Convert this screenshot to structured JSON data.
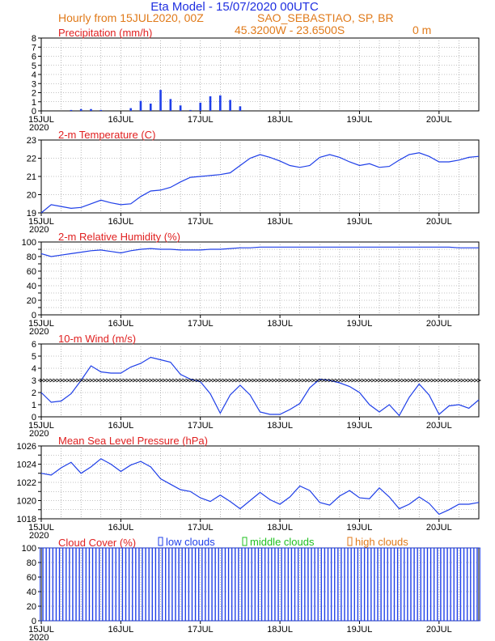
{
  "header": {
    "title": "Eta Model - 15/07/2020 00UTC",
    "line2_left": "Hourly from 15JUL2020, 00Z",
    "location": "SAO_SEBASTIAO, SP, BR",
    "coords": "45.3200W - 23.6500S",
    "elevation": "0  m",
    "title_color": "#1f2fe0",
    "subtitle_color": "#e07a1a",
    "label_color": "#e02020",
    "series_color": "#1f3fe8"
  },
  "x_axis": {
    "tick_labels": [
      "15JUL",
      "16JUL",
      "17JUL",
      "18JUL",
      "19JUL",
      "20JUL"
    ],
    "year_label": "2020",
    "ticks_days": [
      0,
      1,
      2,
      3,
      4,
      5
    ],
    "xlim_hours": [
      0,
      132
    ]
  },
  "chart_data": [
    {
      "type": "bar",
      "title": "Precipitation (mm/h)",
      "ylim": [
        0,
        8
      ],
      "yticks": [
        0,
        1,
        2,
        3,
        4,
        5,
        6,
        7,
        8
      ],
      "x_hours": [
        3,
        6,
        9,
        12,
        15,
        18,
        21,
        24,
        27,
        30,
        33,
        36,
        39,
        42,
        45,
        48,
        51,
        54,
        57,
        60,
        63,
        66,
        69,
        72,
        75,
        78,
        81,
        84,
        87,
        90,
        93,
        96,
        99,
        102,
        105,
        108,
        111,
        114,
        117,
        120,
        123,
        126,
        129,
        132
      ],
      "values": [
        0,
        0,
        0.1,
        0.2,
        0.2,
        0.1,
        0,
        0,
        0.3,
        1.1,
        0.8,
        2.3,
        1.3,
        0.6,
        0.1,
        0.9,
        1.6,
        1.7,
        1.2,
        0.5,
        0,
        0,
        0,
        0,
        0,
        0,
        0,
        0,
        0,
        0,
        0,
        0,
        0,
        0,
        0,
        0,
        0,
        0,
        0,
        0,
        0,
        0,
        0,
        0
      ]
    },
    {
      "type": "line",
      "title": "2-m Temperature (C)",
      "ylim": [
        19,
        23
      ],
      "yticks": [
        19,
        20,
        21,
        22,
        23
      ],
      "x_hours": [
        0,
        3,
        6,
        9,
        12,
        15,
        18,
        21,
        24,
        27,
        30,
        33,
        36,
        39,
        42,
        45,
        48,
        51,
        54,
        57,
        60,
        63,
        66,
        69,
        72,
        75,
        78,
        81,
        84,
        87,
        90,
        93,
        96,
        99,
        102,
        105,
        108,
        111,
        114,
        117,
        120,
        123,
        126,
        129,
        132
      ],
      "values": [
        19.0,
        19.45,
        19.35,
        19.25,
        19.3,
        19.5,
        19.7,
        19.55,
        19.45,
        19.5,
        19.9,
        20.2,
        20.25,
        20.4,
        20.7,
        20.95,
        21.0,
        21.05,
        21.1,
        21.2,
        21.6,
        22.0,
        22.2,
        22.05,
        21.85,
        21.6,
        21.5,
        21.6,
        22.05,
        22.2,
        22.05,
        21.8,
        21.6,
        21.7,
        21.5,
        21.55,
        21.9,
        22.2,
        22.3,
        22.1,
        21.8,
        21.8,
        21.9,
        22.05,
        22.1
      ]
    },
    {
      "type": "line",
      "title": "2-m Relative Humidity (%)",
      "ylim": [
        0,
        100
      ],
      "yticks": [
        0,
        10,
        20,
        30,
        40,
        50,
        60,
        70,
        80,
        90,
        100
      ],
      "ytick_labels": [
        "0",
        "",
        "20",
        "",
        "40",
        "",
        "60",
        "",
        "80",
        "",
        "100"
      ],
      "x_hours": [
        0,
        3,
        6,
        9,
        12,
        15,
        18,
        21,
        24,
        27,
        30,
        33,
        36,
        39,
        42,
        45,
        48,
        51,
        54,
        57,
        60,
        63,
        66,
        69,
        72,
        75,
        78,
        81,
        84,
        87,
        90,
        93,
        96,
        99,
        102,
        105,
        108,
        111,
        114,
        117,
        120,
        123,
        126,
        129,
        132
      ],
      "values": [
        84,
        80,
        82,
        84,
        86,
        88,
        89,
        87,
        85,
        88,
        90,
        91,
        90,
        90,
        89,
        89,
        89,
        90,
        90,
        91,
        92,
        92,
        93,
        93,
        93,
        93,
        93,
        93,
        93,
        93,
        93,
        93,
        93,
        93,
        93,
        93,
        93,
        93,
        93,
        93,
        93,
        93,
        92,
        92,
        92
      ]
    },
    {
      "type": "line",
      "title": "10-m Wind (m/s)",
      "ylim": [
        0,
        6
      ],
      "yticks": [
        0,
        1,
        2,
        3,
        4,
        5,
        6
      ],
      "x_hours": [
        0,
        3,
        6,
        9,
        12,
        15,
        18,
        21,
        24,
        27,
        30,
        33,
        36,
        39,
        42,
        45,
        48,
        51,
        54,
        57,
        60,
        63,
        66,
        69,
        72,
        75,
        78,
        81,
        84,
        87,
        90,
        93,
        96,
        99,
        102,
        105,
        108,
        111,
        114,
        117,
        120,
        123,
        126,
        129,
        132
      ],
      "values": [
        2.0,
        1.2,
        1.3,
        1.9,
        3.0,
        4.2,
        3.7,
        3.6,
        3.6,
        4.1,
        4.4,
        4.9,
        4.7,
        4.5,
        3.5,
        3.1,
        2.9,
        1.9,
        0.3,
        1.8,
        2.6,
        1.8,
        0.4,
        0.2,
        0.2,
        0.6,
        1.1,
        2.4,
        3.1,
        3.0,
        2.8,
        2.5,
        2.0,
        1.0,
        0.4,
        1.0,
        0.1,
        1.6,
        2.7,
        1.8,
        0.2,
        0.9,
        1.0,
        0.7,
        1.4
      ]
    },
    {
      "type": "line",
      "title": "Mean Sea Level Pressure (hPa)",
      "ylim": [
        1018,
        1026
      ],
      "yticks": [
        1018,
        1019,
        1020,
        1021,
        1022,
        1023,
        1024,
        1025,
        1026
      ],
      "ytick_labels": [
        "1018",
        "",
        "1020",
        "",
        "1022",
        "",
        "1024",
        "",
        "1026"
      ],
      "x_hours": [
        0,
        3,
        6,
        9,
        12,
        15,
        18,
        21,
        24,
        27,
        30,
        33,
        36,
        39,
        42,
        45,
        48,
        51,
        54,
        57,
        60,
        63,
        66,
        69,
        72,
        75,
        78,
        81,
        84,
        87,
        90,
        93,
        96,
        99,
        102,
        105,
        108,
        111,
        114,
        117,
        120,
        123,
        126,
        129,
        132
      ],
      "values": [
        1023.0,
        1022.8,
        1023.6,
        1024.2,
        1023.0,
        1023.7,
        1024.6,
        1024.0,
        1023.2,
        1023.9,
        1024.3,
        1023.7,
        1022.4,
        1021.8,
        1021.2,
        1021.0,
        1020.3,
        1019.9,
        1020.6,
        1019.9,
        1019.1,
        1020.0,
        1020.9,
        1020.1,
        1019.6,
        1020.4,
        1021.6,
        1021.1,
        1019.8,
        1019.5,
        1020.5,
        1021.1,
        1020.3,
        1020.2,
        1021.4,
        1020.4,
        1019.1,
        1019.6,
        1020.4,
        1019.7,
        1018.5,
        1019.0,
        1019.6,
        1019.6,
        1019.8
      ]
    },
    {
      "type": "bar",
      "title": "Cloud Cover (%)",
      "ylim": [
        0,
        100
      ],
      "yticks": [
        0,
        20,
        40,
        60,
        80,
        100
      ],
      "legend": [
        "low clouds",
        "middle clouds",
        "high clouds"
      ],
      "legend_colors": [
        "#1f3fe8",
        "#20c020",
        "#e07a1a"
      ],
      "x_hours": [
        0,
        1,
        2,
        3,
        4,
        5,
        6,
        7,
        8,
        9,
        10,
        11,
        12,
        13,
        14,
        15,
        16,
        17,
        18,
        19,
        20,
        21,
        22,
        23,
        24,
        25,
        26,
        27,
        28,
        29,
        30,
        31,
        32,
        33,
        34,
        35,
        36,
        37,
        38,
        39,
        40,
        41,
        42,
        43,
        44,
        45,
        46,
        47,
        48,
        49,
        50,
        51,
        52,
        53,
        54,
        55,
        56,
        57,
        58,
        59,
        60,
        61,
        62,
        63,
        64,
        65,
        66,
        67,
        68,
        69,
        70,
        71,
        72,
        73,
        74,
        75,
        76,
        77,
        78,
        79,
        80,
        81,
        82,
        83,
        84,
        85,
        86,
        87,
        88,
        89,
        90,
        91,
        92,
        93,
        94,
        95,
        96,
        97,
        98,
        99,
        100,
        101,
        102,
        103,
        104,
        105,
        106,
        107,
        108,
        109,
        110,
        111,
        112,
        113,
        114,
        115,
        116,
        117,
        118,
        119,
        120,
        121,
        122,
        123,
        124,
        125,
        126,
        127,
        128,
        129,
        130,
        131,
        132
      ],
      "series": [
        {
          "name": "low clouds",
          "values": [
            100,
            100,
            100,
            100,
            100,
            100,
            100,
            100,
            100,
            100,
            100,
            100,
            100,
            100,
            100,
            100,
            100,
            100,
            100,
            100,
            100,
            100,
            100,
            100,
            100,
            100,
            100,
            100,
            100,
            100,
            100,
            100,
            100,
            100,
            100,
            100,
            100,
            100,
            100,
            100,
            100,
            100,
            100,
            100,
            100,
            100,
            100,
            100,
            100,
            100,
            100,
            100,
            100,
            100,
            100,
            100,
            100,
            100,
            100,
            100,
            100,
            100,
            100,
            100,
            100,
            100,
            100,
            100,
            100,
            100,
            100,
            100,
            100,
            100,
            100,
            100,
            100,
            100,
            100,
            100,
            100,
            100,
            100,
            100,
            100,
            100,
            100,
            100,
            100,
            100,
            100,
            100,
            100,
            100,
            100,
            100,
            100,
            100,
            100,
            100,
            100,
            100,
            100,
            100,
            100,
            100,
            100,
            100,
            100,
            100,
            100,
            100,
            100,
            100,
            100,
            100,
            100,
            100,
            100,
            100,
            100,
            100,
            100,
            100,
            100,
            100,
            100,
            100,
            100,
            100,
            100,
            100,
            100
          ]
        },
        {
          "name": "middle clouds",
          "values": [
            0,
            0,
            0,
            0,
            0,
            0,
            0,
            0,
            0,
            0,
            0,
            0,
            0,
            0,
            0,
            0,
            0,
            0,
            0,
            0,
            0,
            0,
            0,
            0,
            0,
            0,
            0,
            0,
            0,
            0,
            0,
            0,
            0,
            0,
            0,
            0,
            0,
            0,
            0,
            0,
            0,
            0,
            0,
            0,
            0,
            0,
            0,
            0,
            0,
            0,
            0,
            0,
            0,
            0,
            0,
            0,
            0,
            0,
            0,
            0,
            0,
            0,
            0,
            0,
            0,
            0,
            0,
            0,
            0,
            0,
            0,
            0,
            0,
            0,
            0,
            0,
            0,
            0,
            0,
            0,
            0,
            0,
            0,
            0,
            0,
            0,
            0,
            0,
            0,
            0,
            0,
            0,
            0,
            0,
            0,
            0,
            0,
            0,
            0,
            0,
            0,
            0,
            0,
            0,
            0,
            0,
            0,
            0,
            0,
            0,
            0,
            0,
            0,
            0,
            0,
            0,
            0,
            0,
            0,
            0,
            0,
            0,
            0,
            0,
            0,
            0,
            0,
            0,
            0,
            0,
            0,
            0,
            0
          ]
        }
      ]
    }
  ]
}
